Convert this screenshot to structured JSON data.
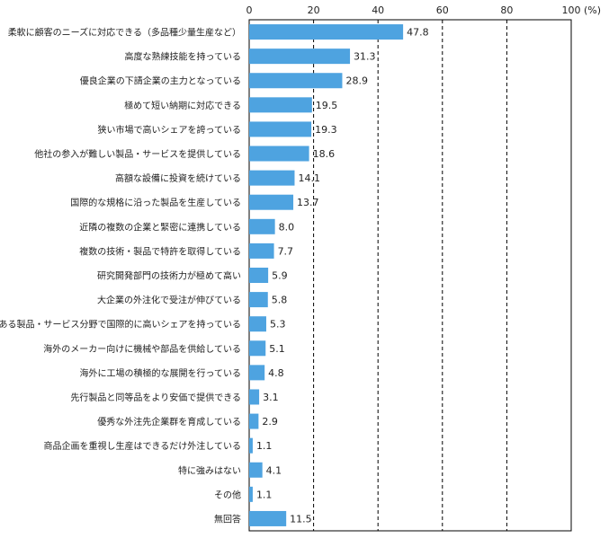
{
  "chart_data": {
    "type": "bar",
    "orientation": "horizontal",
    "unit": "(%)",
    "xlim": [
      0,
      100
    ],
    "ticks": [
      0,
      20,
      40,
      60,
      80,
      100
    ],
    "grid": "dashed vertical",
    "bar_color": "#4ea3e0",
    "categories": [
      "柔軟に顧客のニーズに対応できる（多品種少量生産など）",
      "高度な熟練技能を持っている",
      "優良企業の下請企業の主力となっている",
      "極めて短い納期に対応できる",
      "狭い市場で高いシェアを誇っている",
      "他社の参入が難しい製品・サービスを提供している",
      "高額な設備に投資を続けている",
      "国際的な規格に沿った製品を生産している",
      "近隣の複数の企業と緊密に連携している",
      "複数の技術・製品で特許を取得している",
      "研究開発部門の技術力が極めて高い",
      "大企業の外注化で受注が伸びている",
      "ある製品・サービス分野で国際的に高いシェアを持っている",
      "海外のメーカー向けに機械や部品を供給している",
      "海外に工場の積極的な展開を行っている",
      "先行製品と同等品をより安価で提供できる",
      "優秀な外注先企業群を育成している",
      "商品企画を重視し生産はできるだけ外注している",
      "特に強みはない",
      "その他",
      "無回答"
    ],
    "values": [
      47.8,
      31.3,
      28.9,
      19.5,
      19.3,
      18.6,
      14.1,
      13.7,
      8.0,
      7.7,
      5.9,
      5.8,
      5.3,
      5.1,
      4.8,
      3.1,
      2.9,
      1.1,
      4.1,
      1.1,
      11.5
    ],
    "value_labels": [
      "47.8",
      "31.3",
      "28.9",
      "19.5",
      "19.3",
      "18.6",
      "14.1",
      "13.7",
      "8.0",
      "7.7",
      "5.9",
      "5.8",
      "5.3",
      "5.1",
      "4.8",
      "3.1",
      "2.9",
      "1.1",
      "4.1",
      "1.1",
      "11.5"
    ]
  }
}
